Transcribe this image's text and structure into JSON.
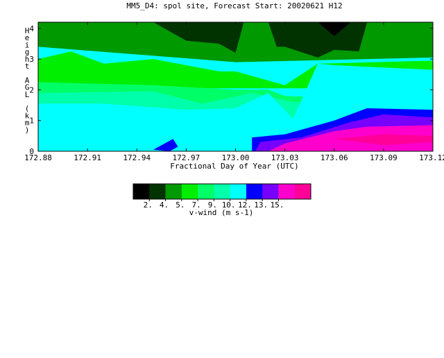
{
  "chart_data": {
    "type": "heatmap",
    "title": "MM5_D4: spol site,  Forecast Start: 20020621 H12",
    "xlabel": "Fractional Day of Year (UTC)",
    "ylabel": "Height AGL (km)",
    "xlim": [
      172.88,
      173.12
    ],
    "ylim": [
      0,
      4.2
    ],
    "x_ticks": [
      "172.88",
      "172.91",
      "172.94",
      "172.97",
      "173.00",
      "173.03",
      "173.06",
      "173.09",
      "173.12"
    ],
    "y_ticks": [
      "0",
      "1",
      "2",
      "3",
      "4"
    ],
    "colorbar": {
      "label": "v-wind (m s-1)",
      "tick_labels": [
        "2.",
        "4.",
        "5.",
        "7.",
        "9.",
        "10.",
        "12.",
        "13.",
        "15."
      ],
      "colors": [
        "#000000",
        "#003300",
        "#009900",
        "#00ee00",
        "#00ff66",
        "#00ffaa",
        "#00ffff",
        "#0000ff",
        "#7700ff",
        "#ff00cc",
        "#ff0099"
      ]
    },
    "filled_regions_by_level": [
      {
        "level_index": 2,
        "outline": [
          [
            172.88,
            4.2
          ],
          [
            173.12,
            4.2
          ],
          [
            173.12,
            3.05
          ],
          [
            173.0,
            2.9
          ],
          [
            172.88,
            3.4
          ]
        ]
      },
      {
        "level_index": 3,
        "outline": [
          [
            172.88,
            3.0
          ],
          [
            172.9,
            3.25
          ],
          [
            172.92,
            2.85
          ],
          [
            172.95,
            3.0
          ],
          [
            172.99,
            2.6
          ],
          [
            173.0,
            2.6
          ],
          [
            173.03,
            2.15
          ],
          [
            173.05,
            2.85
          ],
          [
            173.12,
            2.95
          ],
          [
            173.12,
            2.05
          ],
          [
            172.88,
            2.05
          ]
        ]
      },
      {
        "level_index": 4,
        "outline": [
          [
            172.88,
            2.25
          ],
          [
            172.95,
            2.15
          ],
          [
            173.0,
            2.0
          ],
          [
            173.02,
            2.0
          ],
          [
            173.03,
            1.8
          ],
          [
            173.12,
            1.65
          ],
          [
            173.12,
            0.6
          ],
          [
            172.88,
            0.6
          ]
        ]
      },
      {
        "level_index": 5,
        "outline": [
          [
            172.88,
            1.9
          ],
          [
            172.95,
            1.95
          ],
          [
            172.98,
            1.55
          ],
          [
            173.01,
            1.9
          ],
          [
            173.035,
            1.6
          ],
          [
            173.12,
            1.45
          ],
          [
            173.12,
            0.6
          ],
          [
            172.88,
            0.6
          ]
        ]
      },
      {
        "level_index": 6,
        "outline": [
          [
            172.88,
            0.0
          ],
          [
            172.88,
            1.55
          ],
          [
            172.92,
            1.55
          ],
          [
            172.97,
            1.35
          ],
          [
            173.0,
            1.4
          ],
          [
            173.02,
            1.9
          ],
          [
            173.035,
            1.05
          ],
          [
            173.05,
            2.85
          ],
          [
            173.06,
            2.8
          ],
          [
            173.12,
            2.65
          ],
          [
            173.12,
            0.0
          ]
        ]
      },
      {
        "level_index": 1,
        "outline": [
          [
            172.95,
            4.2
          ],
          [
            172.97,
            3.6
          ],
          [
            172.99,
            3.5
          ],
          [
            173.0,
            3.2
          ],
          [
            173.005,
            4.2
          ]
        ]
      },
      {
        "level_index": 1,
        "outline": [
          [
            173.02,
            4.2
          ],
          [
            173.025,
            3.4
          ],
          [
            173.03,
            3.4
          ],
          [
            173.05,
            3.05
          ],
          [
            173.06,
            3.3
          ],
          [
            173.075,
            3.25
          ],
          [
            173.08,
            4.2
          ]
        ]
      },
      {
        "level_index": 0,
        "outline": [
          [
            173.05,
            4.2
          ],
          [
            173.06,
            3.75
          ],
          [
            173.07,
            4.2
          ]
        ]
      },
      {
        "level_index": 7,
        "outline": [
          [
            173.01,
            0.0
          ],
          [
            173.01,
            0.45
          ],
          [
            173.03,
            0.55
          ],
          [
            173.06,
            1.0
          ],
          [
            173.08,
            1.4
          ],
          [
            173.12,
            1.35
          ],
          [
            173.12,
            0.0
          ]
        ]
      },
      {
        "level_index": 8,
        "outline": [
          [
            173.012,
            0.0
          ],
          [
            173.015,
            0.3
          ],
          [
            173.04,
            0.45
          ],
          [
            173.07,
            0.95
          ],
          [
            173.09,
            1.2
          ],
          [
            173.12,
            1.1
          ],
          [
            173.12,
            0.0
          ]
        ]
      },
      {
        "level_index": 9,
        "outline": [
          [
            173.02,
            0.0
          ],
          [
            173.03,
            0.25
          ],
          [
            173.06,
            0.65
          ],
          [
            173.08,
            0.8
          ],
          [
            173.12,
            0.85
          ],
          [
            173.12,
            0.0
          ]
        ]
      },
      {
        "level_index": 10,
        "outline": [
          [
            173.06,
            0.4
          ],
          [
            173.09,
            0.55
          ],
          [
            173.12,
            0.5
          ],
          [
            173.12,
            0.3
          ],
          [
            173.09,
            0.2
          ]
        ]
      },
      {
        "level_index": 7,
        "outline": [
          [
            172.95,
            0.05
          ],
          [
            172.962,
            0.4
          ],
          [
            172.965,
            0.15
          ],
          [
            172.96,
            0.0
          ]
        ]
      }
    ]
  }
}
